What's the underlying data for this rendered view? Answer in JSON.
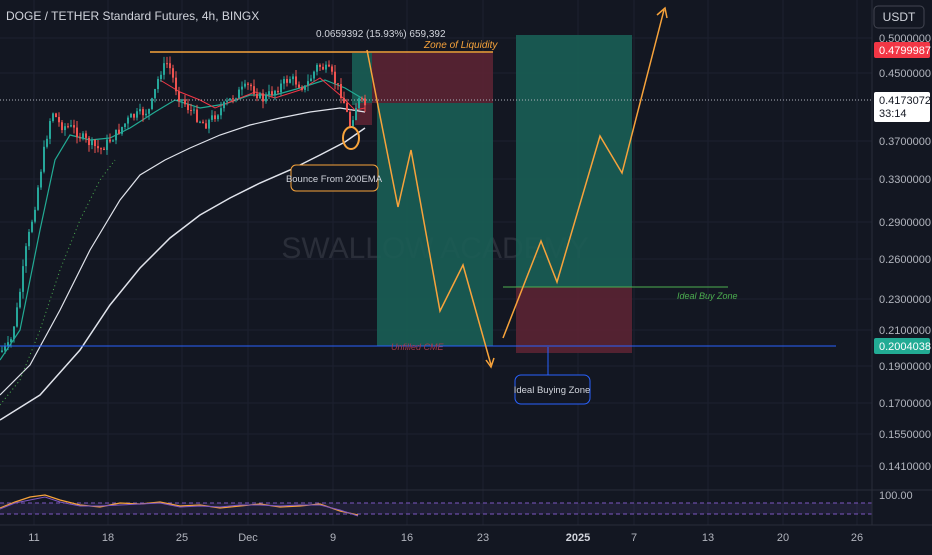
{
  "header": {
    "symbol_title": "DOGE / TETHER Standard Futures, 4h, BINGX",
    "currency_button": "USDT"
  },
  "colors": {
    "background": "#131722",
    "bull": "#26a69a",
    "bear": "#ef5350",
    "orange": "#f7a33b",
    "blue_line": "#2962ff",
    "ema_white": "#e0e3eb",
    "ema_green": "#22ab94",
    "red_ma": "#f23645",
    "profit_zone": "#1a5e55",
    "loss_zone": "#5b2333"
  },
  "axis": {
    "y_ticks": [
      "0.5000000",
      "0.4500000",
      "0.3700000",
      "0.3300000",
      "0.2900000",
      "0.2600000",
      "0.2300000",
      "0.2100000",
      "0.1900000",
      "0.1700000",
      "0.1550000",
      "0.1410000"
    ],
    "x_ticks": [
      "11",
      "18",
      "25",
      "Dec",
      "9",
      "16",
      "23",
      "2025",
      "7",
      "13",
      "20",
      "26"
    ],
    "indicator_tick": "100.00"
  },
  "price_tags": {
    "upper": "0.4799987",
    "current": "0.4173072",
    "countdown": "33:14",
    "cme": "0.2004038"
  },
  "annotations": {
    "measure": "0.0659392 (15.93%) 659,392",
    "zone_of_liquidity": "Zone of Liquidity",
    "bounce": "Bounce From 200EMA",
    "unfilled_cme": "Unfilled CME",
    "ideal_buy_zone": "Ideal Buy Zone",
    "ideal_buying_zone": "Ideal Buying Zone",
    "watermark": "SWALLOW ACADEMY"
  },
  "chart_data": {
    "type": "candlestick",
    "title": "DOGE / TETHER Standard Futures, 4h, BINGX",
    "y_unit": "USDT",
    "ylim": [
      0.135,
      0.52
    ],
    "price_path": [
      {
        "x": "Nov 4",
        "price": 0.16
      },
      {
        "x": "Nov 8",
        "price": 0.2
      },
      {
        "x": "Nov 10",
        "price": 0.3
      },
      {
        "x": "Nov 12",
        "price": 0.4
      },
      {
        "x": "Nov 18",
        "price": 0.38
      },
      {
        "x": "Nov 23",
        "price": 0.47
      },
      {
        "x": "Nov 30",
        "price": 0.43
      },
      {
        "x": "Dec 8",
        "price": 0.47
      },
      {
        "x": "Dec 10",
        "price": 0.38
      },
      {
        "x": "Dec 11",
        "price": 0.4173
      }
    ],
    "levels": [
      {
        "label": "Zone of Liquidity",
        "price": 0.478
      },
      {
        "label": "Ideal Buy Zone",
        "price": 0.242
      },
      {
        "label": "Unfilled CME",
        "price": 0.2004
      }
    ],
    "projection": [
      {
        "x": "Dec 12",
        "price": 0.478
      },
      {
        "x": "Dec 15",
        "price": 0.3
      },
      {
        "x": "Dec 16",
        "price": 0.375
      },
      {
        "x": "Dec 20",
        "price": 0.225
      },
      {
        "x": "Dec 22",
        "price": 0.258
      },
      {
        "x": "Dec 25",
        "price": 0.193
      },
      {
        "x": "Dec 30",
        "price": 0.275
      },
      {
        "x": "Jan 1",
        "price": 0.243
      },
      {
        "x": "Jan 4",
        "price": 0.38
      },
      {
        "x": "Jan 6",
        "price": 0.34
      },
      {
        "x": "Jan 9",
        "price": 0.515
      }
    ]
  }
}
